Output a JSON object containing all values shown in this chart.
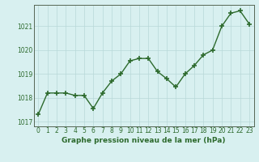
{
  "x": [
    0,
    1,
    2,
    3,
    4,
    5,
    6,
    7,
    8,
    9,
    10,
    11,
    12,
    13,
    14,
    15,
    16,
    17,
    18,
    19,
    20,
    21,
    22,
    23
  ],
  "y": [
    1017.3,
    1018.2,
    1018.2,
    1018.2,
    1018.1,
    1018.1,
    1017.55,
    1018.2,
    1018.7,
    1019.0,
    1019.55,
    1019.65,
    1019.65,
    1019.1,
    1018.8,
    1018.45,
    1019.0,
    1019.35,
    1019.8,
    1020.0,
    1021.0,
    1021.55,
    1021.65,
    1021.1
  ],
  "line_color": "#2d6a2d",
  "marker": "+",
  "marker_size": 4,
  "marker_linewidth": 1.2,
  "linewidth": 1.0,
  "background_color": "#d8f0f0",
  "grid_color": "#b8d8d8",
  "ylim": [
    1016.8,
    1021.9
  ],
  "xlim": [
    -0.5,
    23.5
  ],
  "yticks": [
    1017,
    1018,
    1019,
    1020,
    1021
  ],
  "xticks": [
    0,
    1,
    2,
    3,
    4,
    5,
    6,
    7,
    8,
    9,
    10,
    11,
    12,
    13,
    14,
    15,
    16,
    17,
    18,
    19,
    20,
    21,
    22,
    23
  ],
  "xlabel": "Graphe pression niveau de la mer (hPa)",
  "xlabel_fontsize": 6.5,
  "tick_fontsize": 5.5,
  "tick_color": "#2d6a2d",
  "label_color": "#2d6a2d",
  "spine_color": "#556655"
}
